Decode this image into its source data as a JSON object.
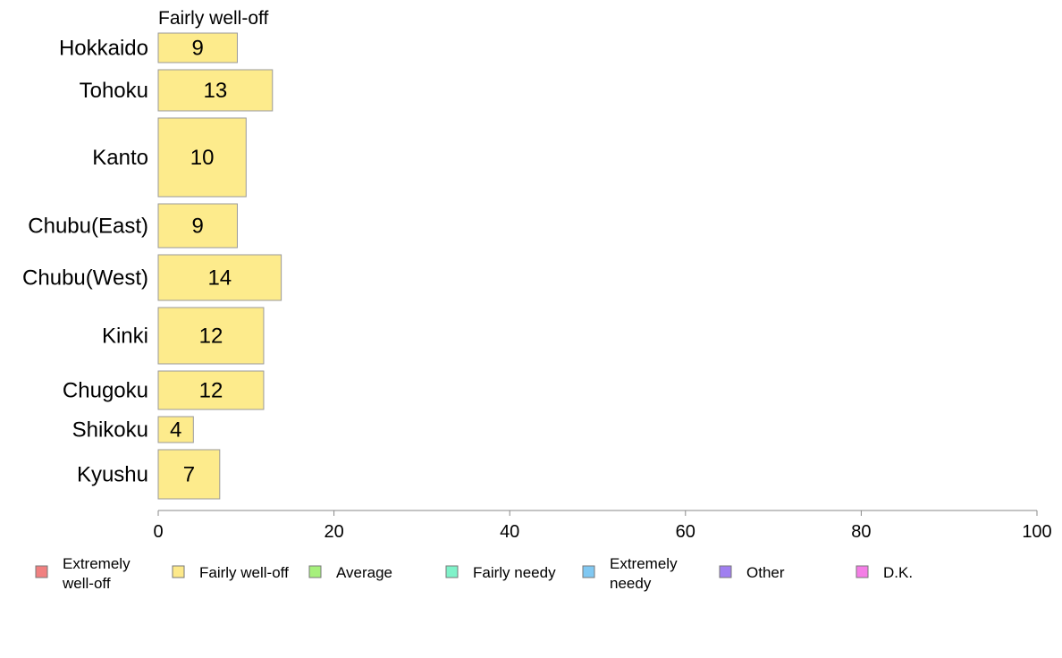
{
  "chart_data": {
    "type": "bar",
    "orientation": "horizontal",
    "panel_title": "Fairly well-off",
    "categories": [
      "Hokkaido",
      "Tohoku",
      "Kanto",
      "Chubu(East)",
      "Chubu(West)",
      "Kinki",
      "Chugoku",
      "Shikoku",
      "Kyushu"
    ],
    "series": [
      {
        "name": "Fairly well-off",
        "values": [
          9,
          13,
          10,
          9,
          14,
          12,
          12,
          4,
          7
        ]
      }
    ],
    "xlim": [
      0,
      100
    ],
    "xticks": [
      0,
      20,
      40,
      60,
      80,
      100
    ],
    "grid": false,
    "legend_position": "bottom",
    "legend": [
      {
        "label": "Extremely well-off",
        "lines": [
          "Extremely",
          "well-off"
        ],
        "color": "#f08080"
      },
      {
        "label": "Fairly well-off",
        "lines": [
          "Fairly well-off"
        ],
        "color": "#fde98a"
      },
      {
        "label": "Average",
        "lines": [
          "Average"
        ],
        "color": "#a6f07c"
      },
      {
        "label": "Fairly needy",
        "lines": [
          "Fairly needy"
        ],
        "color": "#7ff2c9"
      },
      {
        "label": "Extremely needy",
        "lines": [
          "Extremely",
          "needy"
        ],
        "color": "#80c8f2"
      },
      {
        "label": "Other",
        "lines": [
          "Other"
        ],
        "color": "#a07ff0"
      },
      {
        "label": "D.K.",
        "lines": [
          "D.K."
        ],
        "color": "#f47ee6"
      }
    ],
    "bar_color": "#fdeb8c"
  }
}
